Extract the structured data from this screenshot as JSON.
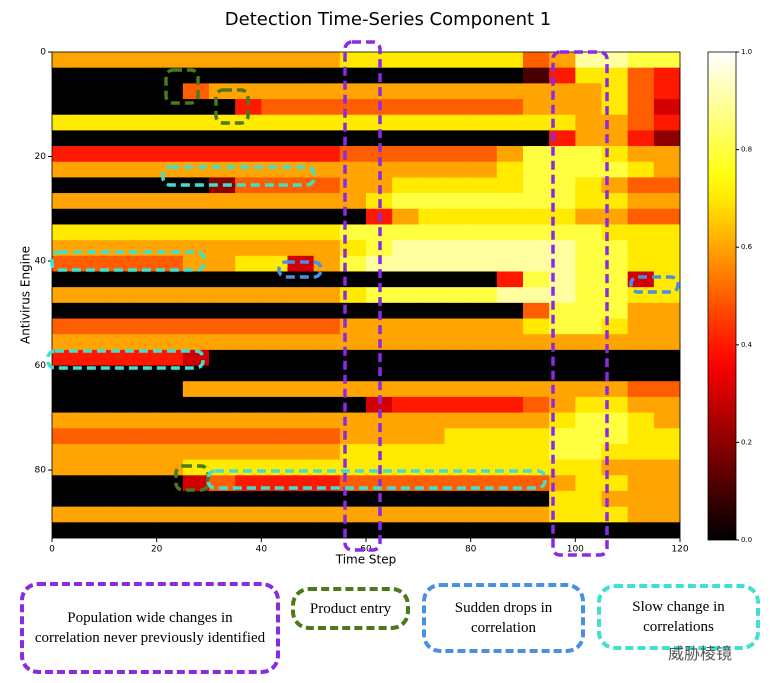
{
  "chart_data": {
    "type": "heatmap",
    "title": "Detection Time-Series Component 1",
    "x_label": "Time Step",
    "y_label": "Antivirus Engine",
    "colormap": "hot",
    "xbins": [
      0,
      5,
      10,
      15,
      20,
      25,
      30,
      35,
      40,
      45,
      50,
      55,
      60,
      65,
      70,
      75,
      80,
      85,
      90,
      95,
      100,
      105,
      110,
      115,
      120
    ],
    "ybins": [
      0,
      3,
      6,
      9,
      12,
      15,
      18,
      21,
      24,
      27,
      30,
      33,
      36,
      39,
      42,
      45,
      48,
      51,
      54,
      57,
      60,
      63,
      66,
      69,
      72,
      75,
      78,
      81,
      84,
      87,
      90,
      93
    ],
    "xlim": [
      0,
      120
    ],
    "ylim": [
      0,
      93
    ],
    "y_inverted": true,
    "xticks": [
      0,
      20,
      40,
      60,
      80,
      100,
      120
    ],
    "yticks": [
      0,
      20,
      40,
      60,
      80
    ],
    "zlim": [
      0,
      1
    ],
    "zticks": [
      {
        "value": 0,
        "label": "0.0"
      },
      {
        "value": 0.2,
        "label": "0.2"
      },
      {
        "value": 0.4,
        "label": "0.4"
      },
      {
        "value": 0.6,
        "label": "0.6"
      },
      {
        "value": 0.8,
        "label": "0.8"
      },
      {
        "value": 1,
        "label": "1.0"
      }
    ],
    "z": [
      [
        0.6,
        0.6,
        0.6,
        0.6,
        0.6,
        0.6,
        0.6,
        0.6,
        0.6,
        0.6,
        0.6,
        0.7,
        0.7,
        0.7,
        0.7,
        0.7,
        0.7,
        0.7,
        0.5,
        0.6,
        0.9,
        0.9,
        0.8,
        0.8
      ],
      [
        0,
        0,
        0,
        0,
        0,
        0,
        0,
        0,
        0,
        0,
        0,
        0,
        0,
        0,
        0,
        0,
        0,
        0,
        0.1,
        0.4,
        0.7,
        0.7,
        0.5,
        0.4
      ],
      [
        0,
        0,
        0,
        0,
        0,
        0.5,
        0.6,
        0.6,
        0.6,
        0.6,
        0.6,
        0.6,
        0.6,
        0.6,
        0.6,
        0.6,
        0.6,
        0.6,
        0.6,
        0.6,
        0.6,
        0.7,
        0.5,
        0.4
      ],
      [
        0,
        0,
        0,
        0,
        0,
        0,
        0,
        0.4,
        0.5,
        0.5,
        0.5,
        0.5,
        0.5,
        0.5,
        0.5,
        0.5,
        0.5,
        0.5,
        0.6,
        0.6,
        0.6,
        0.7,
        0.5,
        0.3
      ],
      [
        0.7,
        0.7,
        0.7,
        0.7,
        0.7,
        0.7,
        0.7,
        0.7,
        0.7,
        0.7,
        0.7,
        0.7,
        0.7,
        0.7,
        0.7,
        0.7,
        0.7,
        0.7,
        0.7,
        0.7,
        0.6,
        0.6,
        0.5,
        0.4
      ],
      [
        0,
        0,
        0,
        0,
        0,
        0,
        0,
        0,
        0,
        0,
        0,
        0,
        0,
        0,
        0,
        0,
        0,
        0,
        0,
        0.4,
        0.6,
        0.6,
        0.4,
        0.2
      ],
      [
        0.4,
        0.4,
        0.4,
        0.4,
        0.4,
        0.4,
        0.4,
        0.4,
        0.4,
        0.4,
        0.4,
        0.5,
        0.5,
        0.5,
        0.5,
        0.5,
        0.5,
        0.6,
        0.8,
        0.8,
        0.8,
        0.7,
        0.6,
        0.6
      ],
      [
        0.6,
        0.6,
        0.6,
        0.6,
        0.6,
        0.6,
        0.6,
        0.6,
        0.6,
        0.6,
        0.6,
        0.6,
        0.6,
        0.6,
        0.6,
        0.6,
        0.6,
        0.7,
        0.8,
        0.8,
        0.8,
        0.8,
        0.7,
        0.6
      ],
      [
        0,
        0,
        0,
        0,
        0,
        0,
        0.2,
        0.5,
        0.5,
        0.5,
        0.5,
        0.6,
        0.6,
        0.7,
        0.7,
        0.7,
        0.7,
        0.7,
        0.8,
        0.8,
        0.7,
        0.6,
        0.5,
        0.5
      ],
      [
        0.6,
        0.6,
        0.6,
        0.6,
        0.6,
        0.6,
        0.6,
        0.6,
        0.6,
        0.6,
        0.6,
        0.6,
        0.7,
        0.8,
        0.8,
        0.8,
        0.8,
        0.8,
        0.8,
        0.8,
        0.7,
        0.7,
        0.6,
        0.6
      ],
      [
        0,
        0,
        0,
        0,
        0,
        0,
        0,
        0,
        0,
        0,
        0,
        0,
        0.4,
        0.6,
        0.7,
        0.7,
        0.7,
        0.7,
        0.7,
        0.7,
        0.6,
        0.6,
        0.5,
        0.5
      ],
      [
        0.7,
        0.7,
        0.7,
        0.7,
        0.7,
        0.7,
        0.7,
        0.7,
        0.7,
        0.7,
        0.7,
        0.8,
        0.8,
        0.8,
        0.8,
        0.8,
        0.8,
        0.8,
        0.8,
        0.8,
        0.8,
        0.7,
        0.7,
        0.7
      ],
      [
        0.6,
        0.6,
        0.6,
        0.6,
        0.6,
        0.6,
        0.6,
        0.6,
        0.6,
        0.6,
        0.6,
        0.7,
        0.8,
        0.9,
        0.9,
        0.9,
        0.9,
        0.9,
        0.9,
        0.9,
        0.8,
        0.8,
        0.7,
        0.7
      ],
      [
        0.5,
        0.5,
        0.5,
        0.5,
        0.5,
        0.6,
        0.6,
        0.7,
        0.7,
        0.3,
        0.6,
        0.8,
        0.9,
        0.9,
        0.9,
        0.9,
        0.9,
        0.9,
        0.9,
        0.9,
        0.8,
        0.8,
        0.7,
        0.7
      ],
      [
        0,
        0,
        0,
        0,
        0,
        0,
        0,
        0,
        0,
        0,
        0,
        0,
        0,
        0,
        0,
        0,
        0,
        0.4,
        0.8,
        0.9,
        0.8,
        0.8,
        0.3,
        0.7
      ],
      [
        0.6,
        0.6,
        0.6,
        0.6,
        0.6,
        0.6,
        0.6,
        0.6,
        0.6,
        0.6,
        0.6,
        0.7,
        0.8,
        0.8,
        0.8,
        0.8,
        0.8,
        0.9,
        0.9,
        0.9,
        0.8,
        0.8,
        0.7,
        0.7
      ],
      [
        0,
        0,
        0,
        0,
        0,
        0,
        0,
        0,
        0,
        0,
        0,
        0,
        0,
        0,
        0,
        0,
        0,
        0,
        0.5,
        0.8,
        0.8,
        0.8,
        0.6,
        0.6
      ],
      [
        0.5,
        0.5,
        0.5,
        0.5,
        0.5,
        0.5,
        0.5,
        0.5,
        0.5,
        0.5,
        0.5,
        0.6,
        0.6,
        0.6,
        0.6,
        0.6,
        0.6,
        0.6,
        0.7,
        0.8,
        0.8,
        0.7,
        0.6,
        0.6
      ],
      [
        0.6,
        0.6,
        0.6,
        0.6,
        0.6,
        0.6,
        0.6,
        0.6,
        0.6,
        0.6,
        0.6,
        0.6,
        0.6,
        0.6,
        0.6,
        0.6,
        0.6,
        0.6,
        0.6,
        0.6,
        0.6,
        0.6,
        0.6,
        0.6
      ],
      [
        0.4,
        0.4,
        0.4,
        0.4,
        0.4,
        0.3,
        0,
        0,
        0,
        0,
        0,
        0,
        0,
        0,
        0,
        0,
        0,
        0,
        0,
        0,
        0,
        0,
        0,
        0
      ],
      [
        0,
        0,
        0,
        0,
        0,
        0,
        0,
        0,
        0,
        0,
        0,
        0,
        0,
        0,
        0,
        0,
        0,
        0,
        0,
        0,
        0,
        0,
        0,
        0
      ],
      [
        0,
        0,
        0,
        0,
        0,
        0.6,
        0.6,
        0.6,
        0.6,
        0.6,
        0.6,
        0.6,
        0.6,
        0.6,
        0.6,
        0.6,
        0.6,
        0.6,
        0.6,
        0.6,
        0.6,
        0.6,
        0.5,
        0.5
      ],
      [
        0,
        0,
        0,
        0,
        0,
        0,
        0,
        0,
        0,
        0,
        0,
        0,
        0.3,
        0.4,
        0.4,
        0.4,
        0.4,
        0.4,
        0.5,
        0.6,
        0.7,
        0.7,
        0.6,
        0.6
      ],
      [
        0.6,
        0.6,
        0.6,
        0.6,
        0.6,
        0.6,
        0.6,
        0.6,
        0.6,
        0.6,
        0.6,
        0.6,
        0.6,
        0.6,
        0.6,
        0.6,
        0.6,
        0.6,
        0.6,
        0.7,
        0.8,
        0.8,
        0.7,
        0.6
      ],
      [
        0.5,
        0.5,
        0.5,
        0.5,
        0.5,
        0.5,
        0.5,
        0.5,
        0.5,
        0.5,
        0.5,
        0.6,
        0.6,
        0.6,
        0.6,
        0.7,
        0.7,
        0.7,
        0.7,
        0.8,
        0.8,
        0.8,
        0.7,
        0.7
      ],
      [
        0.6,
        0.6,
        0.6,
        0.6,
        0.6,
        0.6,
        0.6,
        0.6,
        0.6,
        0.6,
        0.6,
        0.7,
        0.7,
        0.7,
        0.7,
        0.7,
        0.7,
        0.7,
        0.7,
        0.8,
        0.8,
        0.7,
        0.7,
        0.7
      ],
      [
        0.6,
        0.6,
        0.6,
        0.6,
        0.6,
        0.7,
        0.7,
        0.7,
        0.7,
        0.7,
        0.7,
        0.7,
        0.7,
        0.7,
        0.7,
        0.7,
        0.7,
        0.7,
        0.7,
        0.7,
        0.7,
        0.6,
        0.6,
        0.6
      ],
      [
        0,
        0,
        0,
        0,
        0,
        0.3,
        0.5,
        0.4,
        0.4,
        0.4,
        0.4,
        0.5,
        0.5,
        0.5,
        0.5,
        0.5,
        0.5,
        0.5,
        0.5,
        0.6,
        0.7,
        0.7,
        0.6,
        0.6
      ],
      [
        0,
        0,
        0,
        0,
        0,
        0,
        0,
        0,
        0,
        0,
        0,
        0,
        0,
        0,
        0,
        0,
        0,
        0,
        0,
        0.7,
        0.7,
        0.6,
        0.6,
        0.6
      ],
      [
        0.6,
        0.6,
        0.6,
        0.6,
        0.6,
        0.6,
        0.6,
        0.6,
        0.6,
        0.6,
        0.6,
        0.6,
        0.6,
        0.6,
        0.6,
        0.6,
        0.6,
        0.6,
        0.6,
        0.7,
        0.7,
        0.7,
        0.6,
        0.6
      ],
      [
        0,
        0,
        0,
        0,
        0,
        0,
        0,
        0,
        0,
        0,
        0,
        0,
        0,
        0,
        0,
        0,
        0,
        0,
        0,
        0,
        0,
        0,
        0,
        0
      ]
    ],
    "legend": [
      {
        "label": "Population wide changes in correlation never previously identified",
        "color": "#8a2be2"
      },
      {
        "label": "Product entry",
        "color": "#4a7a1a"
      },
      {
        "label": "Sudden drops in correlation",
        "color": "#4a90e2"
      },
      {
        "label": "Slow change in correlations",
        "color": "#40e0d0"
      }
    ],
    "watermark": "威胁棱镜"
  }
}
